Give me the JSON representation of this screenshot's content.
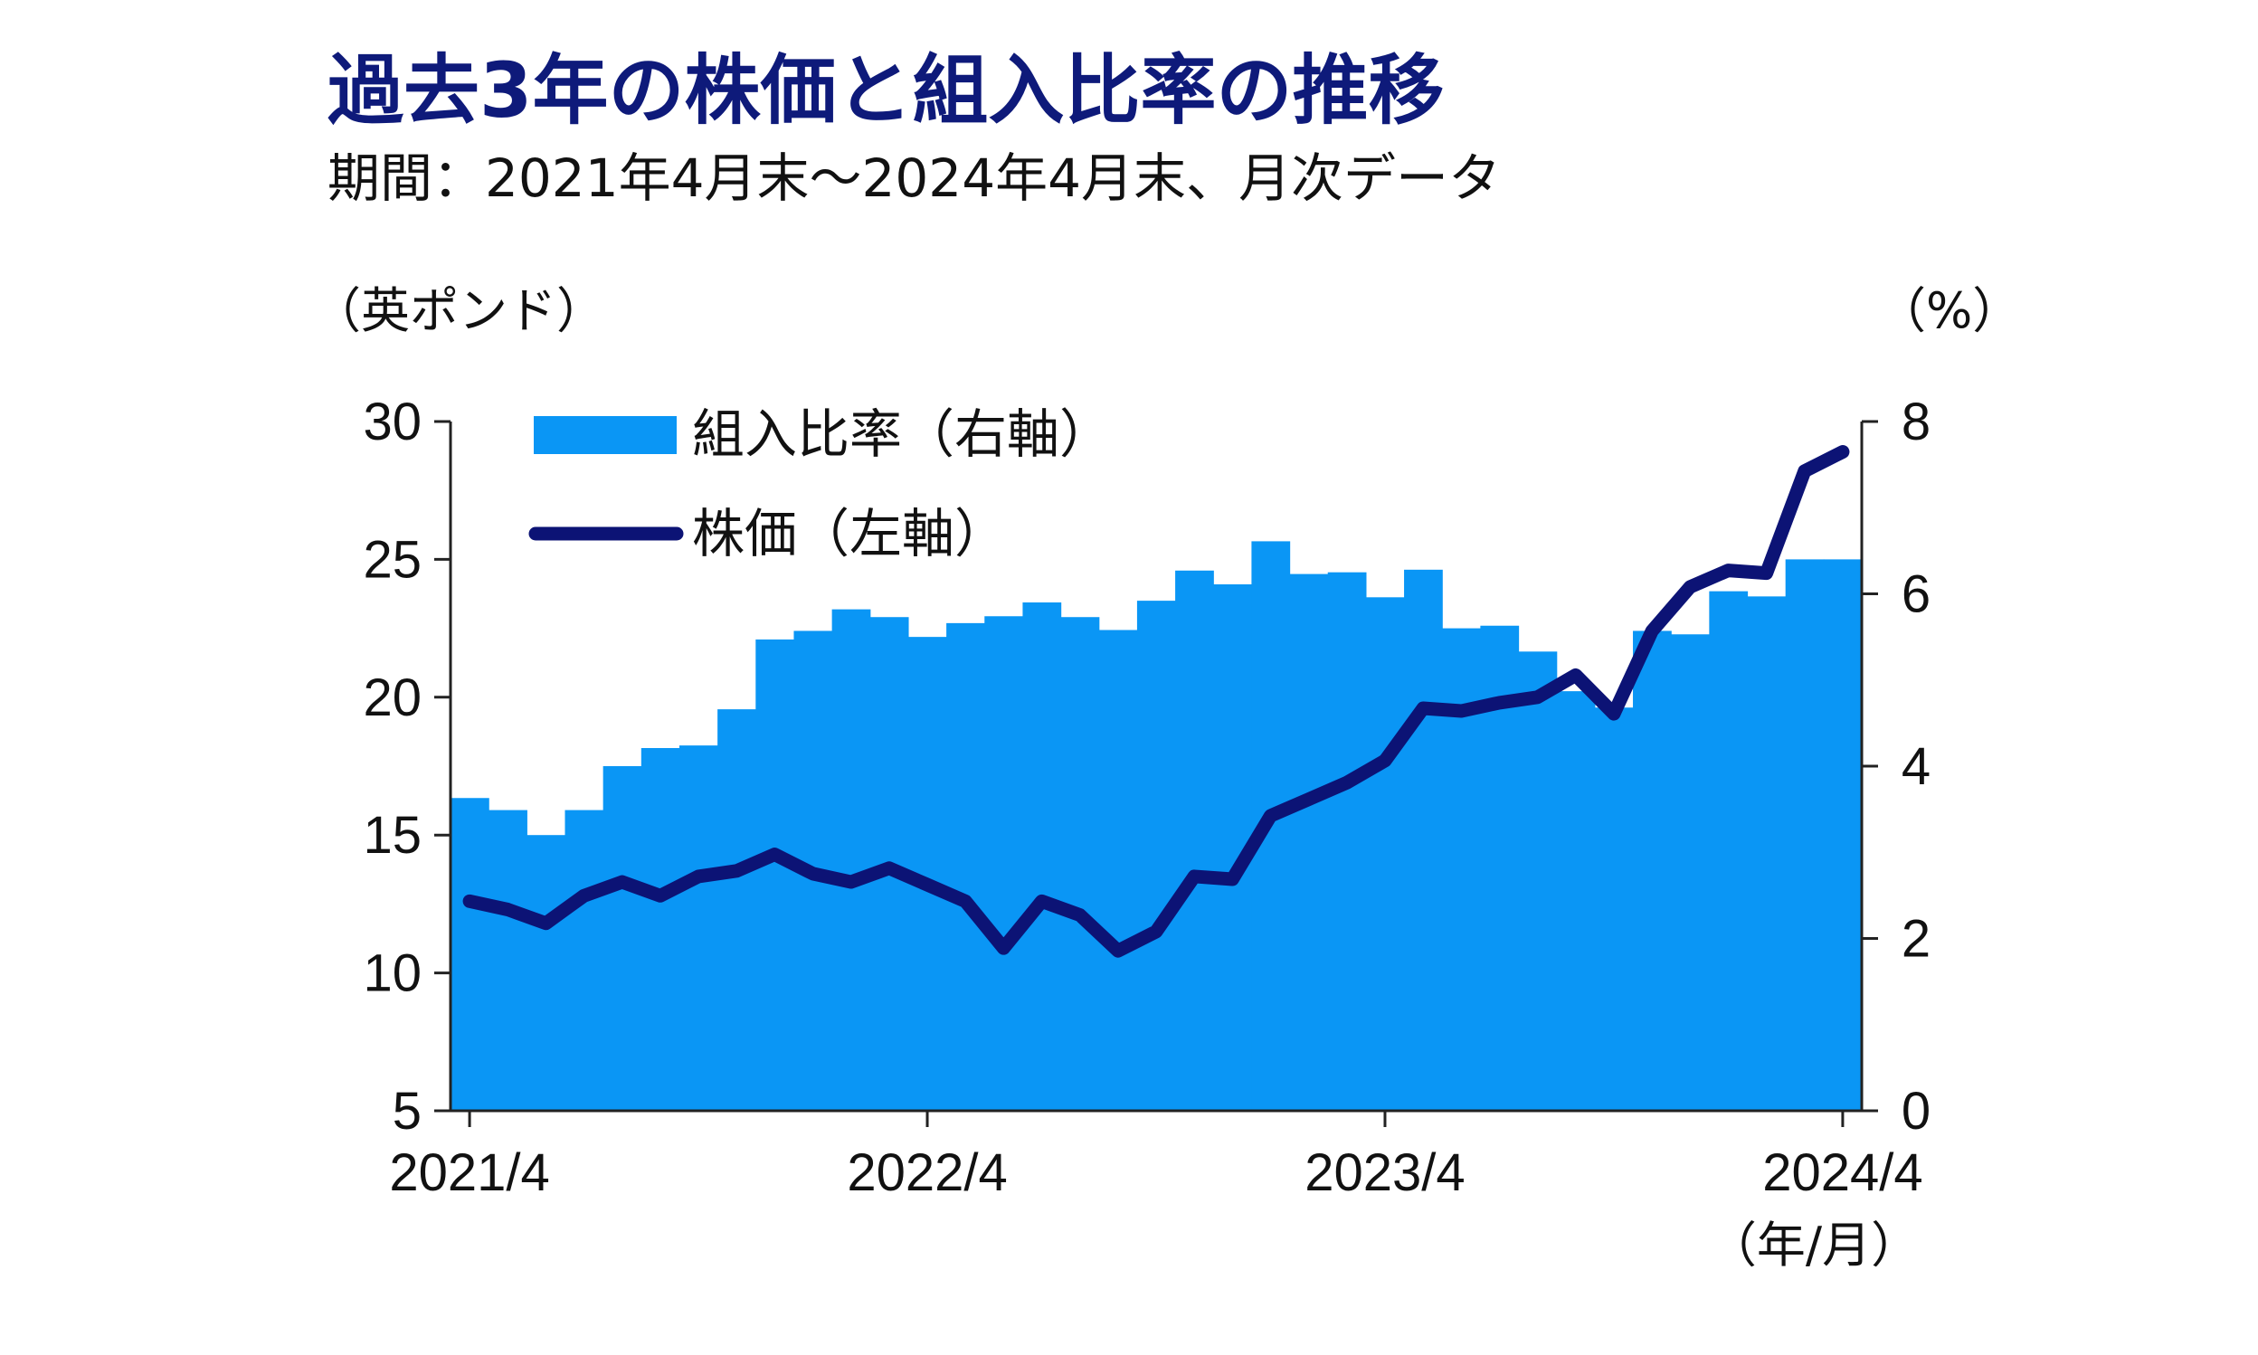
{
  "title": "過去3年の株価と組入比率の推移",
  "subtitle": "期間：2021年4月末～2024年4月末、月次データ",
  "chart_data": {
    "type": "bar+line",
    "title": "過去3年の株価と組入比率の推移",
    "subtitle": "期間：2021年4月末～2024年4月末、月次データ",
    "left_axis_unit": "（英ポンド）",
    "right_axis_unit": "（%）",
    "x_unit": "（年/月）",
    "left_ylim": [
      5,
      30
    ],
    "right_ylim": [
      0,
      8
    ],
    "left_ticks": [
      "30",
      "25",
      "20",
      "15",
      "10",
      "5"
    ],
    "right_ticks": [
      "8",
      "6",
      "4",
      "2",
      "0"
    ],
    "x_tick_labels": [
      "2021/4",
      "2022/4",
      "2023/4",
      "2024/4"
    ],
    "x": [
      "2021/4",
      "2021/5",
      "2021/6",
      "2021/7",
      "2021/8",
      "2021/9",
      "2021/10",
      "2021/11",
      "2021/12",
      "2022/1",
      "2022/2",
      "2022/3",
      "2022/4",
      "2022/5",
      "2022/6",
      "2022/7",
      "2022/8",
      "2022/9",
      "2022/10",
      "2022/11",
      "2022/12",
      "2023/1",
      "2023/2",
      "2023/3",
      "2023/4",
      "2023/5",
      "2023/6",
      "2023/7",
      "2023/8",
      "2023/9",
      "2023/10",
      "2023/11",
      "2023/12",
      "2024/1",
      "2024/2",
      "2024/3",
      "2024/4"
    ],
    "legend_placement": "top-left",
    "series": [
      {
        "name": "組入比率（右軸）",
        "type": "bar",
        "axis": "right",
        "color": "#0a96f5",
        "values": [
          3.63,
          3.49,
          3.2,
          3.49,
          4.0,
          4.21,
          4.24,
          4.66,
          5.47,
          5.57,
          5.82,
          5.73,
          5.5,
          5.66,
          5.74,
          5.9,
          5.73,
          5.58,
          5.92,
          6.27,
          6.11,
          6.61,
          6.23,
          6.25,
          5.96,
          6.28,
          5.6,
          5.63,
          5.33,
          4.87,
          4.68,
          5.57,
          5.53,
          6.03,
          5.97,
          6.4,
          6.4
        ]
      },
      {
        "name": "株価（左軸）",
        "type": "line",
        "axis": "left",
        "color": "#0c1375",
        "values": [
          12.6,
          12.3,
          11.8,
          12.8,
          13.3,
          12.8,
          13.5,
          13.7,
          14.3,
          13.6,
          13.3,
          13.8,
          13.2,
          12.6,
          10.9,
          12.6,
          12.1,
          10.8,
          11.5,
          13.5,
          13.4,
          15.7,
          16.3,
          16.9,
          17.7,
          19.6,
          19.5,
          19.8,
          20.0,
          20.8,
          19.4,
          22.4,
          24.0,
          24.6,
          24.5,
          28.2,
          28.9
        ]
      }
    ]
  }
}
